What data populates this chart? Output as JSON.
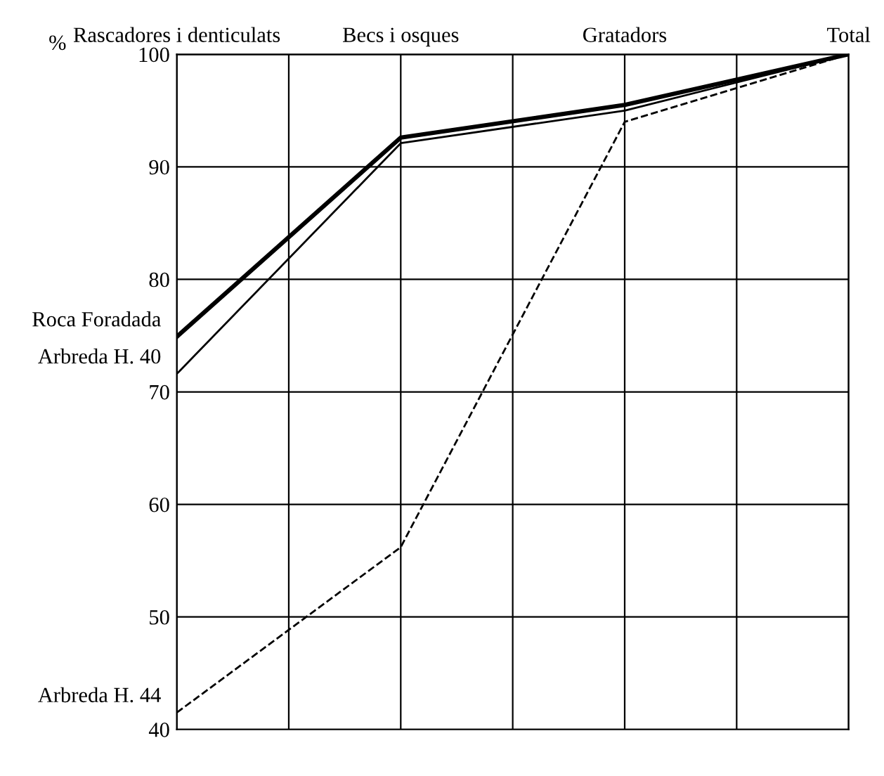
{
  "chart_data": {
    "type": "line",
    "ylabel": "%",
    "categories": [
      "Rascadores i denticulats",
      "Becs i osques",
      "Gratadors",
      "Total"
    ],
    "ylim": [
      40,
      100
    ],
    "yticks": [
      40,
      50,
      60,
      70,
      80,
      90,
      100
    ],
    "grid": true,
    "marker": "none",
    "series": [
      {
        "name": "Roca Foradada",
        "color": "#000000",
        "values": [
          74.9,
          92.6,
          95.5,
          100
        ],
        "line_style": "solid"
      },
      {
        "name": "Arbreda H. 40",
        "color": "#000000",
        "values": [
          71.6,
          92.1,
          95.0,
          100
        ],
        "line_style": "solid"
      },
      {
        "name": "Arbreda H. 44",
        "color": "#000000",
        "values": [
          41.5,
          56.2,
          94.0,
          100
        ],
        "line_style": "dashed"
      }
    ]
  }
}
